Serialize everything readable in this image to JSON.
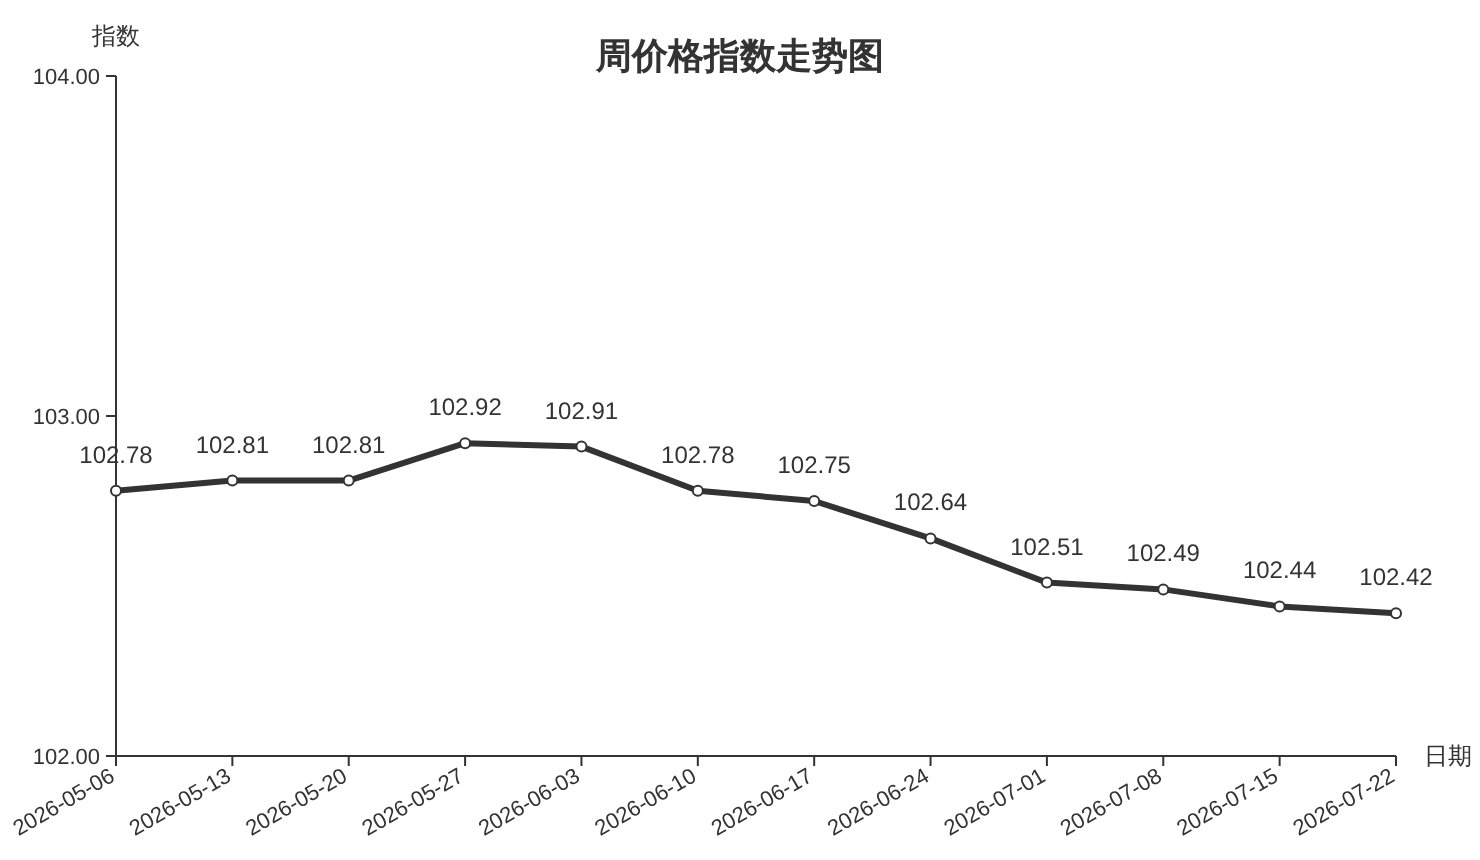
{
  "chart_data": {
    "type": "line",
    "title": "周价格指数走势图",
    "ylabel": "指数",
    "xlabel": "日期",
    "categories": [
      "2026-05-06",
      "2026-05-13",
      "2026-05-20",
      "2026-05-27",
      "2026-06-03",
      "2026-06-10",
      "2026-06-17",
      "2026-06-24",
      "2026-07-01",
      "2026-07-08",
      "2026-07-15",
      "2026-07-22"
    ],
    "series": [
      {
        "color": "#333333",
        "values": [
          102.78,
          102.81,
          102.81,
          102.92,
          102.91,
          102.78,
          102.75,
          102.64,
          102.51,
          102.49,
          102.44,
          102.42
        ]
      }
    ],
    "ylim": [
      102,
      104
    ],
    "yticks": [
      {
        "value": 102,
        "label": "102.00"
      },
      {
        "value": 103,
        "label": "103.00"
      },
      {
        "value": 104,
        "label": "104.00"
      }
    ],
    "data_labels": true,
    "marker": "circle"
  }
}
